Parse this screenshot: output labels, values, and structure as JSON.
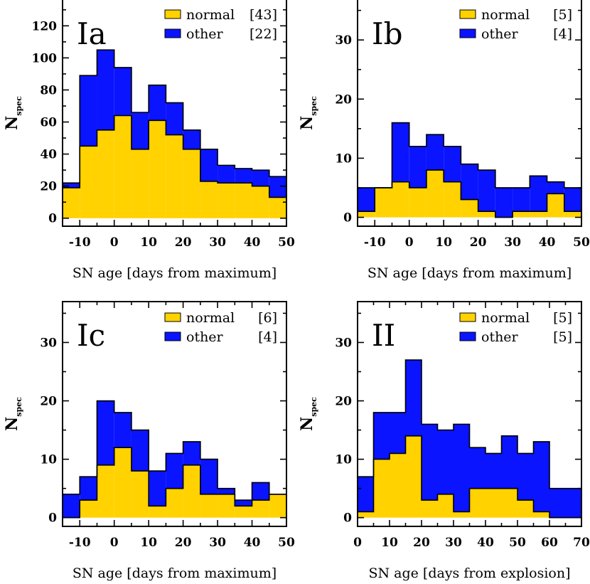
{
  "colors": {
    "normal": "#ffd200",
    "other": "#0a14ff",
    "frame": "#000000"
  },
  "chart_data": [
    {
      "type": "bar",
      "panel_label": "Ia",
      "xlabel": "SN age [days from maximum]",
      "ylabel": "N",
      "ylabel_sub": "spec",
      "xlim": [
        -15,
        50
      ],
      "ylim": [
        -5,
        137
      ],
      "xticks": [
        -10,
        0,
        10,
        20,
        30,
        40,
        50
      ],
      "yticks": [
        0,
        20,
        40,
        60,
        80,
        100,
        120
      ],
      "bin_edges": [
        -15,
        -10,
        -5,
        0,
        5,
        10,
        15,
        20,
        25,
        30,
        35,
        40,
        45,
        50
      ],
      "series": [
        {
          "name": "normal",
          "count": "[43]",
          "values": [
            19,
            45,
            55,
            64,
            43,
            61,
            52,
            43,
            23,
            22,
            22,
            20,
            13
          ]
        },
        {
          "name": "other",
          "count": "[22]",
          "values": [
            3,
            44,
            50,
            30,
            23,
            22,
            20,
            12,
            20,
            11,
            9,
            10,
            13
          ]
        }
      ]
    },
    {
      "type": "bar",
      "panel_label": "Ib",
      "xlabel": "SN age [days from maximum]",
      "ylabel": "N",
      "ylabel_sub": "spec",
      "xlim": [
        -15,
        50
      ],
      "ylim": [
        -1.5,
        37
      ],
      "xticks": [
        -10,
        0,
        10,
        20,
        30,
        40,
        50
      ],
      "yticks": [
        0,
        10,
        20,
        30
      ],
      "bin_edges": [
        -15,
        -10,
        -5,
        0,
        5,
        10,
        15,
        20,
        25,
        30,
        35,
        40,
        45,
        50
      ],
      "series": [
        {
          "name": "normal",
          "count": "[5]",
          "values": [
            1,
            5,
            6,
            5,
            8,
            6,
            3,
            1,
            0,
            1,
            1,
            4,
            1
          ]
        },
        {
          "name": "other",
          "count": "[4]",
          "values": [
            4,
            0,
            10,
            7,
            6,
            6,
            6,
            7,
            5,
            4,
            6,
            2,
            4
          ]
        }
      ]
    },
    {
      "type": "bar",
      "panel_label": "Ic",
      "xlabel": "SN age [days from maximum]",
      "ylabel": "N",
      "ylabel_sub": "spec",
      "xlim": [
        -15,
        50
      ],
      "ylim": [
        -1.5,
        37
      ],
      "xticks": [
        -10,
        0,
        10,
        20,
        30,
        40,
        50
      ],
      "yticks": [
        0,
        10,
        20,
        30
      ],
      "bin_edges": [
        -15,
        -10,
        -5,
        0,
        5,
        10,
        15,
        20,
        25,
        30,
        35,
        40,
        45,
        50
      ],
      "series": [
        {
          "name": "normal",
          "count": "[6]",
          "values": [
            0,
            3,
            9,
            12,
            8,
            2,
            5,
            9,
            4,
            4,
            2,
            3,
            4
          ]
        },
        {
          "name": "other",
          "count": "[4]",
          "values": [
            4,
            4,
            11,
            6,
            7,
            6,
            6,
            4,
            6,
            1,
            1,
            3,
            0
          ]
        }
      ]
    },
    {
      "type": "bar",
      "panel_label": "II",
      "xlabel": "SN age [days from explosion]",
      "ylabel": "N",
      "ylabel_sub": "spec",
      "xlim": [
        0,
        70
      ],
      "ylim": [
        -1.5,
        37
      ],
      "xticks": [
        0,
        10,
        20,
        30,
        40,
        50,
        60,
        70
      ],
      "yticks": [
        0,
        10,
        20,
        30
      ],
      "bin_edges": [
        0,
        5,
        10,
        15,
        20,
        25,
        30,
        35,
        40,
        45,
        50,
        55,
        60,
        65,
        70
      ],
      "series": [
        {
          "name": "normal",
          "count": "[5]",
          "values": [
            1,
            10,
            11,
            14,
            3,
            4,
            1,
            5,
            5,
            5,
            3,
            1,
            0,
            0
          ]
        },
        {
          "name": "other",
          "count": "[5]",
          "values": [
            6,
            8,
            7,
            13,
            13,
            11,
            15,
            7,
            6,
            9,
            8,
            12,
            5,
            5
          ]
        }
      ]
    }
  ]
}
